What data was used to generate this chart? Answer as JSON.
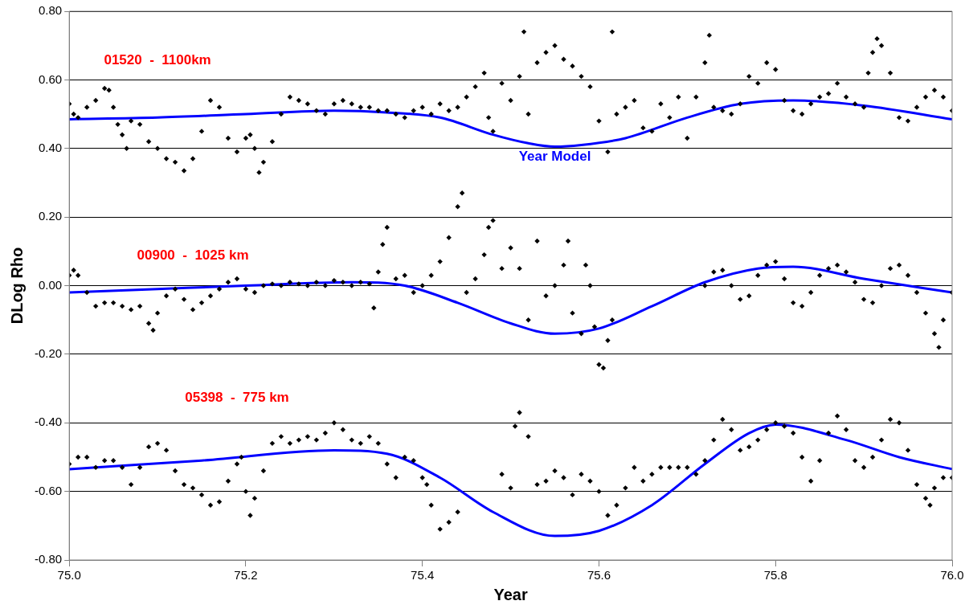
{
  "chart_data": {
    "type": "scatter",
    "xlabel": "Year",
    "ylabel": "DLog Rho",
    "xlim": [
      75.0,
      76.0
    ],
    "ylim": [
      -0.8,
      0.8
    ],
    "xticks": [
      {
        "value": 75.0,
        "label": "75.0"
      },
      {
        "value": 75.2,
        "label": "75.2"
      },
      {
        "value": 75.4,
        "label": "75.4"
      },
      {
        "value": 75.6,
        "label": "75.6"
      },
      {
        "value": 75.8,
        "label": "75.8"
      },
      {
        "value": 76.0,
        "label": "76.0"
      }
    ],
    "yticks": [
      {
        "value": -0.8,
        "label": "-0.80"
      },
      {
        "value": -0.6,
        "label": "-0.60"
      },
      {
        "value": -0.4,
        "label": "-0.40"
      },
      {
        "value": -0.2,
        "label": "-0.20"
      },
      {
        "value": 0,
        "label": "0.00"
      },
      {
        "value": 0.2,
        "label": "0.20"
      },
      {
        "value": 0.4,
        "label": "0.40"
      },
      {
        "value": 0.6,
        "label": "0.60"
      },
      {
        "value": 0.8,
        "label": "0.80"
      }
    ],
    "grid": "y",
    "legend": false,
    "series": [
      {
        "marker": "diamond",
        "color": "#000000",
        "x": [
          75.0,
          75.005,
          75.01,
          75.02,
          75.03,
          75.04,
          75.045,
          75.05,
          75.055,
          75.06,
          75.065,
          75.07,
          75.08,
          75.09,
          75.1,
          75.11,
          75.12,
          75.13,
          75.14,
          75.15,
          75.16,
          75.17,
          75.18,
          75.19,
          75.2,
          75.205,
          75.21,
          75.215,
          75.22,
          75.23,
          75.24,
          75.25,
          75.26,
          75.27,
          75.28,
          75.29,
          75.3,
          75.31,
          75.32,
          75.33,
          75.34,
          75.35,
          75.36,
          75.37,
          75.38,
          75.39,
          75.4,
          75.41,
          75.42,
          75.43,
          75.44,
          75.45,
          75.46,
          75.47,
          75.475,
          75.48,
          75.49,
          75.5,
          75.51,
          75.515,
          75.52,
          75.53,
          75.54,
          75.55,
          75.56,
          75.57,
          75.58,
          75.59,
          75.6,
          75.61,
          75.615,
          75.62,
          75.63,
          75.64,
          75.65,
          75.66,
          75.67,
          75.68,
          75.69,
          75.7,
          75.71,
          75.72,
          75.725,
          75.73,
          75.74,
          75.75,
          75.76,
          75.77,
          75.78,
          75.79,
          75.8,
          75.81,
          75.82,
          75.83,
          75.84,
          75.85,
          75.86,
          75.87,
          75.88,
          75.89,
          75.9,
          75.905,
          75.91,
          75.915,
          75.92,
          75.93,
          75.94,
          75.95,
          75.96,
          75.97,
          75.98,
          75.99,
          76.0
        ],
        "values": [
          0.53,
          0.5,
          0.49,
          0.52,
          0.54,
          0.575,
          0.57,
          0.52,
          0.47,
          0.44,
          0.4,
          0.48,
          0.47,
          0.42,
          0.4,
          0.37,
          0.36,
          0.335,
          0.37,
          0.45,
          0.54,
          0.52,
          0.43,
          0.39,
          0.43,
          0.44,
          0.4,
          0.33,
          0.36,
          0.42,
          0.5,
          0.55,
          0.54,
          0.53,
          0.51,
          0.5,
          0.53,
          0.54,
          0.53,
          0.52,
          0.52,
          0.51,
          0.51,
          0.5,
          0.49,
          0.51,
          0.52,
          0.5,
          0.53,
          0.51,
          0.52,
          0.55,
          0.58,
          0.62,
          0.49,
          0.45,
          0.59,
          0.54,
          0.61,
          0.74,
          0.5,
          0.65,
          0.68,
          0.7,
          0.66,
          0.64,
          0.61,
          0.58,
          0.48,
          0.39,
          0.74,
          0.5,
          0.52,
          0.54,
          0.46,
          0.45,
          0.53,
          0.49,
          0.55,
          0.43,
          0.55,
          0.65,
          0.73,
          0.52,
          0.51,
          0.5,
          0.53,
          0.61,
          0.59,
          0.65,
          0.63,
          0.54,
          0.51,
          0.5,
          0.53,
          0.55,
          0.56,
          0.59,
          0.55,
          0.53,
          0.52,
          0.62,
          0.68,
          0.72,
          0.7,
          0.62,
          0.49,
          0.48,
          0.52,
          0.55,
          0.57,
          0.55,
          0.51
        ]
      },
      {
        "type": "line",
        "marker": "none",
        "line_style": "solid",
        "color": "#0000ff",
        "x": [
          75.0,
          75.1,
          75.2,
          75.3,
          75.36,
          75.42,
          75.48,
          75.52,
          75.55,
          75.58,
          75.63,
          75.7,
          75.76,
          75.82,
          75.9,
          76.0
        ],
        "values": [
          0.485,
          0.49,
          0.5,
          0.51,
          0.505,
          0.49,
          0.44,
          0.415,
          0.405,
          0.41,
          0.43,
          0.49,
          0.53,
          0.54,
          0.525,
          0.485
        ]
      },
      {
        "marker": "diamond",
        "color": "#000000",
        "x": [
          75.0,
          75.005,
          75.01,
          75.02,
          75.03,
          75.04,
          75.05,
          75.06,
          75.07,
          75.08,
          75.09,
          75.095,
          75.1,
          75.11,
          75.12,
          75.13,
          75.14,
          75.15,
          75.16,
          75.17,
          75.18,
          75.19,
          75.2,
          75.21,
          75.22,
          75.23,
          75.24,
          75.25,
          75.26,
          75.27,
          75.28,
          75.29,
          75.3,
          75.31,
          75.32,
          75.33,
          75.34,
          75.345,
          75.35,
          75.355,
          75.36,
          75.37,
          75.38,
          75.39,
          75.4,
          75.41,
          75.42,
          75.43,
          75.44,
          75.445,
          75.45,
          75.46,
          75.47,
          75.475,
          75.48,
          75.49,
          75.5,
          75.51,
          75.52,
          75.53,
          75.54,
          75.55,
          75.56,
          75.565,
          75.57,
          75.58,
          75.585,
          75.59,
          75.595,
          75.6,
          75.605,
          75.61,
          75.615,
          75.72,
          75.73,
          75.74,
          75.75,
          75.76,
          75.77,
          75.78,
          75.79,
          75.8,
          75.81,
          75.82,
          75.83,
          75.84,
          75.85,
          75.86,
          75.87,
          75.88,
          75.89,
          75.9,
          75.91,
          75.92,
          75.93,
          75.94,
          75.95,
          75.96,
          75.97,
          75.98,
          75.985,
          75.99,
          76.0
        ],
        "values": [
          0.03,
          0.045,
          0.03,
          -0.02,
          -0.06,
          -0.05,
          -0.05,
          -0.06,
          -0.07,
          -0.06,
          -0.11,
          -0.13,
          -0.08,
          -0.03,
          -0.01,
          -0.04,
          -0.07,
          -0.05,
          -0.03,
          -0.01,
          0.01,
          0.02,
          -0.01,
          -0.02,
          0.0,
          0.005,
          0.0,
          0.01,
          0.005,
          0.0,
          0.01,
          0.0,
          0.015,
          0.01,
          0.0,
          0.01,
          0.005,
          -0.065,
          0.04,
          0.12,
          0.17,
          0.02,
          0.03,
          -0.02,
          0.0,
          0.03,
          0.07,
          0.14,
          0.23,
          0.27,
          -0.02,
          0.02,
          0.09,
          0.17,
          0.19,
          0.05,
          0.11,
          0.05,
          -0.1,
          0.13,
          -0.03,
          0.0,
          0.06,
          0.13,
          -0.08,
          -0.14,
          0.06,
          0.0,
          -0.12,
          -0.23,
          -0.24,
          -0.16,
          -0.1,
          0.0,
          0.04,
          0.045,
          0.0,
          -0.04,
          -0.03,
          0.03,
          0.06,
          0.07,
          0.02,
          -0.05,
          -0.06,
          -0.02,
          0.03,
          0.05,
          0.06,
          0.04,
          0.01,
          -0.04,
          -0.05,
          0.0,
          0.05,
          0.06,
          0.03,
          -0.02,
          -0.08,
          -0.14,
          -0.18,
          -0.1,
          -0.02
        ]
      },
      {
        "type": "line",
        "marker": "none",
        "line_style": "solid",
        "color": "#0000ff",
        "x": [
          75.0,
          75.1,
          75.2,
          75.32,
          75.38,
          75.44,
          75.5,
          75.55,
          75.6,
          75.66,
          75.72,
          75.78,
          75.82,
          75.9,
          76.0
        ],
        "values": [
          -0.02,
          -0.01,
          0.0,
          0.01,
          0.0,
          -0.05,
          -0.11,
          -0.14,
          -0.125,
          -0.06,
          0.01,
          0.05,
          0.055,
          0.02,
          -0.02
        ]
      },
      {
        "marker": "diamond",
        "color": "#000000",
        "x": [
          75.0,
          75.01,
          75.02,
          75.03,
          75.04,
          75.05,
          75.06,
          75.07,
          75.08,
          75.09,
          75.1,
          75.11,
          75.12,
          75.13,
          75.14,
          75.15,
          75.16,
          75.17,
          75.18,
          75.19,
          75.195,
          75.2,
          75.205,
          75.21,
          75.22,
          75.23,
          75.24,
          75.25,
          75.26,
          75.27,
          75.28,
          75.29,
          75.3,
          75.31,
          75.32,
          75.33,
          75.34,
          75.35,
          75.36,
          75.37,
          75.38,
          75.39,
          75.4,
          75.405,
          75.41,
          75.42,
          75.43,
          75.44,
          75.49,
          75.5,
          75.505,
          75.51,
          75.52,
          75.53,
          75.54,
          75.55,
          75.56,
          75.57,
          75.58,
          75.59,
          75.6,
          75.61,
          75.62,
          75.63,
          75.64,
          75.65,
          75.66,
          75.67,
          75.68,
          75.69,
          75.7,
          75.71,
          75.72,
          75.73,
          75.74,
          75.75,
          75.76,
          75.77,
          75.78,
          75.79,
          75.8,
          75.81,
          75.82,
          75.83,
          75.84,
          75.85,
          75.86,
          75.87,
          75.88,
          75.89,
          75.9,
          75.91,
          75.92,
          75.93,
          75.94,
          75.95,
          75.96,
          75.97,
          75.975,
          75.98,
          75.99,
          76.0
        ],
        "values": [
          -0.52,
          -0.5,
          -0.5,
          -0.53,
          -0.51,
          -0.51,
          -0.53,
          -0.58,
          -0.53,
          -0.47,
          -0.46,
          -0.48,
          -0.54,
          -0.58,
          -0.59,
          -0.61,
          -0.64,
          -0.63,
          -0.57,
          -0.52,
          -0.5,
          -0.6,
          -0.67,
          -0.62,
          -0.54,
          -0.46,
          -0.44,
          -0.46,
          -0.45,
          -0.44,
          -0.45,
          -0.43,
          -0.4,
          -0.42,
          -0.45,
          -0.46,
          -0.44,
          -0.46,
          -0.52,
          -0.56,
          -0.5,
          -0.51,
          -0.56,
          -0.58,
          -0.64,
          -0.71,
          -0.69,
          -0.66,
          -0.55,
          -0.59,
          -0.41,
          -0.37,
          -0.44,
          -0.58,
          -0.57,
          -0.54,
          -0.56,
          -0.61,
          -0.55,
          -0.57,
          -0.6,
          -0.67,
          -0.64,
          -0.59,
          -0.53,
          -0.57,
          -0.55,
          -0.53,
          -0.53,
          -0.53,
          -0.53,
          -0.55,
          -0.51,
          -0.45,
          -0.39,
          -0.42,
          -0.48,
          -0.47,
          -0.45,
          -0.42,
          -0.4,
          -0.41,
          -0.43,
          -0.5,
          -0.57,
          -0.51,
          -0.43,
          -0.38,
          -0.42,
          -0.51,
          -0.53,
          -0.5,
          -0.45,
          -0.39,
          -0.4,
          -0.48,
          -0.58,
          -0.62,
          -0.64,
          -0.59,
          -0.56,
          -0.56
        ]
      },
      {
        "type": "line",
        "marker": "none",
        "line_style": "solid",
        "color": "#0000ff",
        "x": [
          75.0,
          75.15,
          75.3,
          75.36,
          75.42,
          75.48,
          75.55,
          75.6,
          75.66,
          75.72,
          75.77,
          75.8,
          75.88,
          75.94,
          76.0
        ],
        "values": [
          -0.535,
          -0.51,
          -0.48,
          -0.49,
          -0.56,
          -0.66,
          -0.73,
          -0.715,
          -0.64,
          -0.52,
          -0.43,
          -0.405,
          -0.45,
          -0.5,
          -0.535
        ]
      }
    ],
    "annotations": [
      "01520  -  1100km",
      "Year Model",
      "00900  -  1025 km",
      "05398  -  775 km"
    ]
  }
}
